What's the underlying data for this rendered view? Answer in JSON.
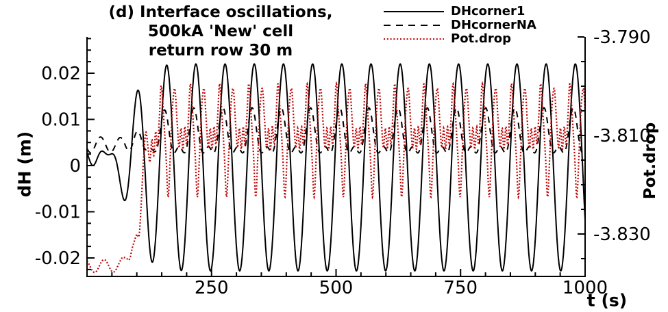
{
  "title": {
    "lines": [
      "(d) Interface oscillations,",
      "500kA 'New' cell",
      "return row 30 m"
    ]
  },
  "legend": {
    "items": [
      {
        "label": "DHcorner1",
        "style": "solid",
        "color": "#000000"
      },
      {
        "label": "DHcornerNA",
        "style": "dashed",
        "color": "#000000"
      },
      {
        "label": "Pot.drop",
        "style": "dotted",
        "color": "#c00000"
      }
    ]
  },
  "axes": {
    "left": {
      "title": "dH (m)",
      "major_ticks": [
        0.02,
        0.01,
        0,
        -0.01,
        -0.02
      ],
      "major_labels": [
        "0.02",
        "0.01",
        "0",
        "-0.01",
        "-0.02"
      ],
      "minor_step": 0.0025,
      "range": [
        -0.024,
        0.0279
      ]
    },
    "right": {
      "title": "Pot.drop",
      "major_ticks": [
        -3.79,
        -3.81,
        -3.83
      ],
      "major_labels": [
        "-3.790",
        "-3.810",
        "-3.830"
      ],
      "minor_step": 0.005,
      "range": [
        -3.8386,
        -3.79
      ]
    },
    "bottom": {
      "title": "t (s)",
      "major_ticks": [
        250,
        500,
        750,
        1000
      ],
      "major_labels": [
        "250",
        "500",
        "750",
        "1000"
      ],
      "minor_step": 50,
      "range": [
        0,
        1000
      ]
    }
  },
  "chart_data": {
    "type": "line",
    "x_label": "t (s)",
    "x_range": [
      0,
      1000
    ],
    "period_s": 58.6,
    "first_full_peak_t": 160,
    "series": [
      {
        "name": "DHcorner1",
        "axis": "left",
        "color": "#000000",
        "line_style": "solid",
        "steady": {
          "amplitude": 0.0224,
          "mean": -0.0004,
          "peak_value": 0.0222,
          "trough_value": -0.0228
        },
        "transient": {
          "envelope_mid_t": 85,
          "envelope_slope": 18,
          "wiggle_base": 0.002,
          "wiggle_amp": 0.0016,
          "wiggle_period": 34,
          "wiggle_phase": 2.6,
          "wiggle_decay": 70,
          "start_value": 0.0028
        }
      },
      {
        "name": "DHcornerNA",
        "axis": "left",
        "color": "#000000",
        "line_style": "dashed",
        "steady": {
          "mean": 0.006,
          "h1": 0.0042,
          "h2": 0.0023,
          "lead_rad": 0.45,
          "peak_value": 0.0125,
          "trough_value": 0.002
        },
        "transient": {
          "blend_mid_t": 112,
          "blend_slope": 16,
          "early_mean": 0.0045,
          "early_amp": 0.0017,
          "early_period": 40,
          "early_phase": 3.6
        }
      },
      {
        "name": "Pot.drop",
        "axis": "right",
        "color": "#c00000",
        "line_style": "dotted",
        "steady": {
          "phase_lead_fraction": 0.19,
          "peak_value": -3.7995,
          "trough_value": -3.8225,
          "cycle_keypoints": [
            [
              0.0,
              -3.7995
            ],
            [
              0.09,
              -3.8065
            ],
            [
              0.17,
              -3.8145
            ],
            [
              0.24,
              -3.8225
            ],
            [
              0.31,
              -3.8145
            ],
            [
              0.385,
              -3.8045
            ],
            [
              0.47,
              -3.8005
            ],
            [
              0.55,
              -3.8075
            ],
            [
              0.615,
              -3.8125
            ],
            [
              0.68,
              -3.8085
            ],
            [
              0.745,
              -3.8128
            ],
            [
              0.81,
              -3.8082
            ],
            [
              0.875,
              -3.8118
            ],
            [
              0.94,
              -3.8058
            ]
          ]
        },
        "transient": {
          "blend_mid_t": 108,
          "blend_slope": 9,
          "early_mean": -3.8365,
          "early_amp": 0.0013,
          "early_period": 38,
          "early_phase": 2.2
        }
      }
    ]
  },
  "colors": {
    "axis": "#000000",
    "background": "#ffffff",
    "pot_drop_red": "#c00000"
  }
}
